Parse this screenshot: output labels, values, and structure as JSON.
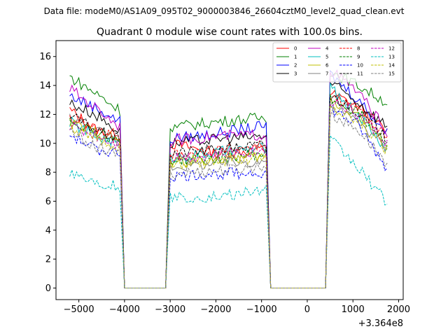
{
  "figure": {
    "suptitle": "Data file: modeM0/AS1A09_095T02_9000003846_26604cztM0_level2_quad_clean.evt",
    "offset_label": "+3.364e8"
  },
  "chart_data": {
    "type": "line",
    "title": "Quadrant 0 module wise count rates with 100.0s bins.",
    "xlabel": "",
    "ylabel": "",
    "x_offset": 336400000,
    "xlim": [
      -5500,
      2100
    ],
    "ylim": [
      -0.8,
      17.1
    ],
    "xticks": [
      -5000,
      -4000,
      -3000,
      -2000,
      -1000,
      0,
      1000,
      2000
    ],
    "xtick_labels": [
      "−5000",
      "−4000",
      "−3000",
      "−2000",
      "−1000",
      "0",
      "1000",
      "2000"
    ],
    "yticks": [
      0,
      2,
      4,
      6,
      8,
      10,
      12,
      14,
      16
    ],
    "ytick_labels": [
      "0",
      "2",
      "4",
      "6",
      "8",
      "10",
      "12",
      "14",
      "16"
    ],
    "grid": false,
    "legend_position": "top-right",
    "segments": [
      {
        "x_start": -5200,
        "x_end": -4100
      },
      {
        "x_start": -3000,
        "x_end": -900
      },
      {
        "x_start": 500,
        "x_end": 1750
      }
    ],
    "series": [
      {
        "name": "0",
        "color": "#ff0000",
        "dash": "solid",
        "segment_values": [
          [
            12.3,
            11.0,
            10.5
          ],
          [
            10.0,
            9.3,
            9.6
          ],
          [
            13.5,
            12.5,
            10.8
          ]
        ]
      },
      {
        "name": "1",
        "color": "#008000",
        "dash": "solid",
        "segment_values": [
          [
            14.6,
            13.5,
            12.3
          ],
          [
            11.1,
            11.5,
            11.8
          ],
          [
            15.0,
            14.0,
            12.8
          ]
        ]
      },
      {
        "name": "2",
        "color": "#0000ff",
        "dash": "solid",
        "segment_values": [
          [
            13.3,
            12.5,
            11.5
          ],
          [
            10.3,
            10.7,
            11.2
          ],
          [
            14.8,
            13.0,
            10.7
          ]
        ]
      },
      {
        "name": "3",
        "color": "#000000",
        "dash": "solid",
        "segment_values": [
          [
            12.8,
            12.0,
            10.8
          ],
          [
            10.0,
            10.3,
            10.5
          ],
          [
            14.2,
            12.8,
            11.2
          ]
        ]
      },
      {
        "name": "4",
        "color": "#bf00bf",
        "dash": "solid",
        "segment_values": [
          [
            13.8,
            12.5,
            11.2
          ],
          [
            10.2,
            10.5,
            10.6
          ],
          [
            15.1,
            13.5,
            10.8
          ]
        ]
      },
      {
        "name": "5",
        "color": "#00bfbf",
        "dash": "solid",
        "segment_values": [
          [
            11.5,
            10.5,
            10.0
          ],
          [
            9.0,
            9.4,
            9.7
          ],
          [
            13.8,
            12.0,
            9.5
          ]
        ]
      },
      {
        "name": "6",
        "color": "#bfbf00",
        "dash": "solid",
        "segment_values": [
          [
            11.4,
            10.8,
            10.2
          ],
          [
            8.7,
            8.9,
            9.1
          ],
          [
            13.0,
            12.0,
            9.8
          ]
        ]
      },
      {
        "name": "7",
        "color": "#808080",
        "dash": "solid",
        "segment_values": [
          [
            11.8,
            11.0,
            10.0
          ],
          [
            8.4,
            8.6,
            8.8
          ],
          [
            12.6,
            11.5,
            9.6
          ]
        ]
      },
      {
        "name": "8",
        "color": "#ff0000",
        "dash": "dashed",
        "segment_values": [
          [
            11.8,
            11.0,
            10.2
          ],
          [
            9.2,
            9.5,
            9.9
          ],
          [
            13.2,
            12.3,
            10.5
          ]
        ]
      },
      {
        "name": "9",
        "color": "#008000",
        "dash": "dashed",
        "segment_values": [
          [
            11.6,
            10.9,
            10.1
          ],
          [
            8.8,
            9.0,
            9.3
          ],
          [
            13.1,
            12.1,
            10.1
          ]
        ]
      },
      {
        "name": "10",
        "color": "#0000ff",
        "dash": "dashed",
        "segment_values": [
          [
            10.6,
            9.6,
            9.3
          ],
          [
            7.7,
            7.9,
            8.0
          ],
          [
            12.4,
            11.2,
            8.2
          ]
        ]
      },
      {
        "name": "11",
        "color": "#000000",
        "dash": "dashed",
        "segment_values": [
          [
            11.9,
            11.0,
            10.2
          ],
          [
            9.3,
            9.6,
            9.9
          ],
          [
            13.3,
            12.2,
            10.3
          ]
        ]
      },
      {
        "name": "12",
        "color": "#bf00bf",
        "dash": "dashed",
        "segment_values": [
          [
            11.2,
            10.6,
            9.9
          ],
          [
            9.0,
            9.2,
            9.5
          ],
          [
            13.0,
            12.0,
            10.0
          ]
        ]
      },
      {
        "name": "13",
        "color": "#00bfbf",
        "dash": "dashed",
        "segment_values": [
          [
            8.1,
            7.3,
            7.0
          ],
          [
            6.2,
            6.3,
            6.8
          ],
          [
            10.3,
            8.3,
            5.9
          ]
        ]
      },
      {
        "name": "14",
        "color": "#bfbf00",
        "dash": "dashed",
        "segment_values": [
          [
            11.0,
            10.4,
            9.7
          ],
          [
            8.5,
            8.7,
            9.0
          ],
          [
            12.6,
            11.6,
            9.5
          ]
        ]
      },
      {
        "name": "15",
        "color": "#808080",
        "dash": "dashed",
        "segment_values": [
          [
            10.8,
            9.8,
            9.2
          ],
          [
            7.9,
            8.1,
            8.4
          ],
          [
            12.0,
            10.9,
            8.6
          ]
        ]
      }
    ]
  }
}
